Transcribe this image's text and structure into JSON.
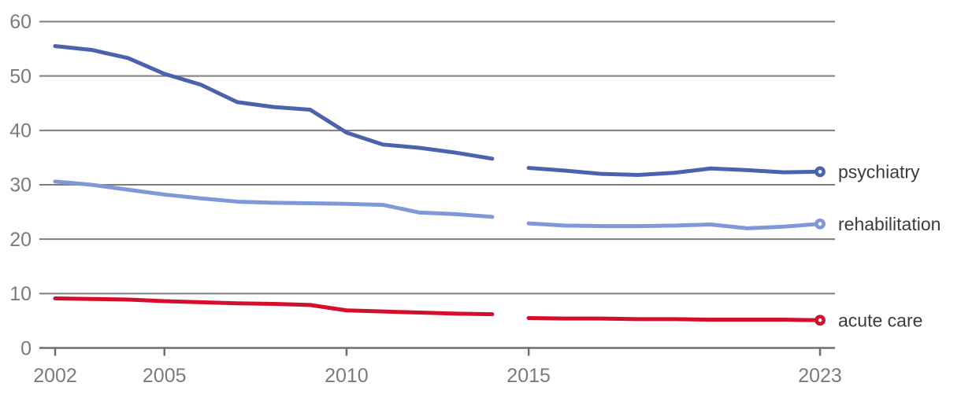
{
  "chart_data": {
    "type": "line",
    "title": "",
    "x_axis": {
      "ticks": [
        2002,
        2005,
        2010,
        2015,
        2023
      ],
      "range": [
        2002,
        2023
      ]
    },
    "y_axis": {
      "ticks": [
        0,
        10,
        20,
        30,
        40,
        50,
        60
      ],
      "range": [
        0,
        60
      ]
    },
    "grid": "horizontal gridlines on",
    "legend_position": "labels at right end of each line",
    "data_gap": {
      "between": [
        2014,
        2015
      ]
    },
    "series": [
      {
        "name": "psychiatry",
        "color": "#4a63ac",
        "segments": [
          {
            "years": [
              2002,
              2003,
              2004,
              2005,
              2006,
              2007,
              2008,
              2009,
              2010,
              2011,
              2012,
              2013,
              2014
            ],
            "values": [
              55.5,
              54.8,
              53.3,
              50.4,
              48.4,
              45.2,
              44.3,
              43.8,
              39.6,
              37.4,
              36.8,
              35.9,
              34.8
            ]
          },
          {
            "years": [
              2015,
              2016,
              2017,
              2018,
              2019,
              2020,
              2021,
              2022,
              2023
            ],
            "values": [
              33.1,
              32.6,
              32.0,
              31.8,
              32.2,
              33.0,
              32.7,
              32.3,
              32.4
            ]
          }
        ]
      },
      {
        "name": "rehabilitation",
        "color": "#7f99d8",
        "segments": [
          {
            "years": [
              2002,
              2003,
              2004,
              2005,
              2006,
              2007,
              2008,
              2009,
              2010,
              2011,
              2012,
              2013,
              2014
            ],
            "values": [
              30.6,
              30.0,
              29.1,
              28.2,
              27.5,
              26.9,
              26.7,
              26.6,
              26.5,
              26.3,
              24.9,
              24.6,
              24.1
            ]
          },
          {
            "years": [
              2015,
              2016,
              2017,
              2018,
              2019,
              2020,
              2021,
              2022,
              2023
            ],
            "values": [
              22.9,
              22.5,
              22.4,
              22.4,
              22.5,
              22.7,
              22.0,
              22.3,
              22.8
            ]
          }
        ]
      },
      {
        "name": "acute care",
        "color": "#d40e2b",
        "segments": [
          {
            "years": [
              2002,
              2003,
              2004,
              2005,
              2006,
              2007,
              2008,
              2009,
              2010,
              2011,
              2012,
              2013,
              2014
            ],
            "values": [
              9.1,
              9.0,
              8.9,
              8.6,
              8.4,
              8.2,
              8.1,
              7.9,
              6.9,
              6.7,
              6.5,
              6.3,
              6.2
            ]
          },
          {
            "years": [
              2015,
              2016,
              2017,
              2018,
              2019,
              2020,
              2021,
              2022,
              2023
            ],
            "values": [
              5.5,
              5.4,
              5.4,
              5.3,
              5.3,
              5.2,
              5.2,
              5.2,
              5.1
            ]
          }
        ]
      }
    ],
    "colors": {
      "gridline": "#7d7d7d",
      "axis": "#6e6e6e",
      "tick_label": "#7b7b7b",
      "series_label": "#3c3c3c",
      "marker_fill": "#ffffff",
      "background": "#ffffff"
    }
  }
}
